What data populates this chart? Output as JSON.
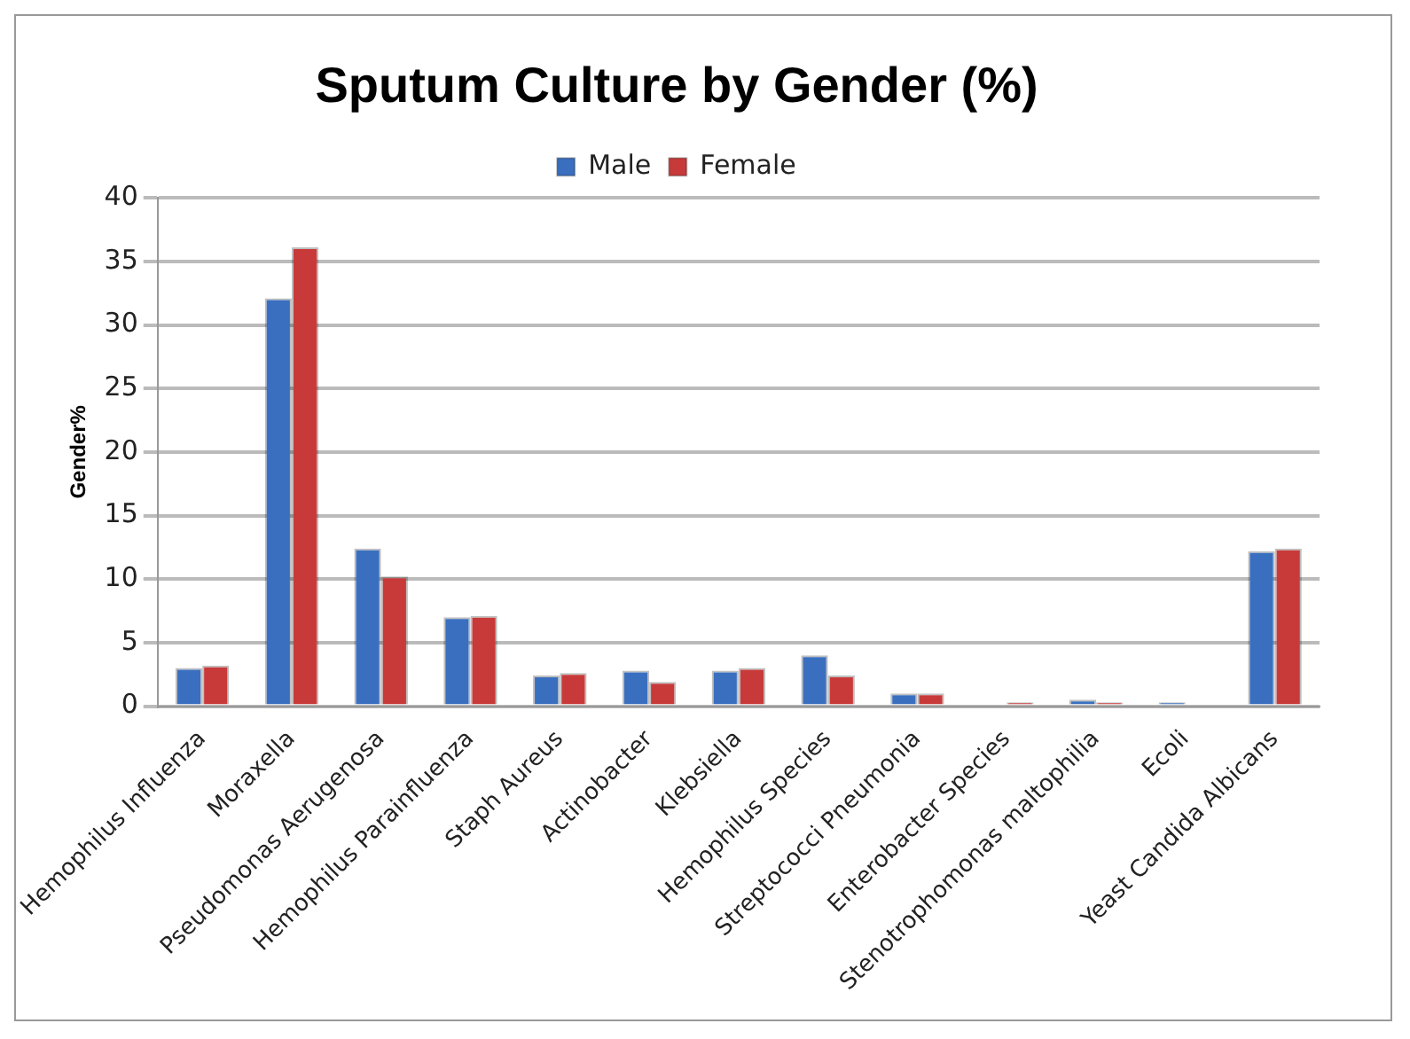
{
  "chart_data": {
    "type": "bar",
    "title": "Sputum Culture by Gender (%)",
    "ylabel": "Gender%",
    "categories": [
      "Hemophilus Influenza",
      "Moraxella",
      "Pseudomonas Aerugenosa",
      "Hemophilus Parainfluenza",
      "Staph Aureus",
      "Actinobacter",
      "Klebsiella",
      "Hemophilus Species",
      "Streptococci Pneumonia",
      "Enterobacter Species",
      "Stenotrophomonas maltophilia",
      "Ecoli",
      "Yeast Candida Albicans"
    ],
    "series": [
      {
        "name": "Male",
        "color": "#3a6fbf",
        "values": [
          3.0,
          32.1,
          12.4,
          7.0,
          2.4,
          2.8,
          2.8,
          4.0,
          1.0,
          0,
          0.5,
          0.3,
          12.2
        ]
      },
      {
        "name": "Female",
        "color": "#c83a3a",
        "values": [
          3.2,
          36.1,
          10.2,
          7.1,
          2.6,
          1.9,
          3.0,
          2.4,
          1.0,
          0.3,
          0.3,
          0,
          12.4
        ]
      }
    ],
    "ylim": [
      0,
      40
    ],
    "yticks": [
      0,
      5,
      10,
      15,
      20,
      25,
      30,
      35,
      40
    ],
    "grid": "y",
    "legend": "top"
  }
}
